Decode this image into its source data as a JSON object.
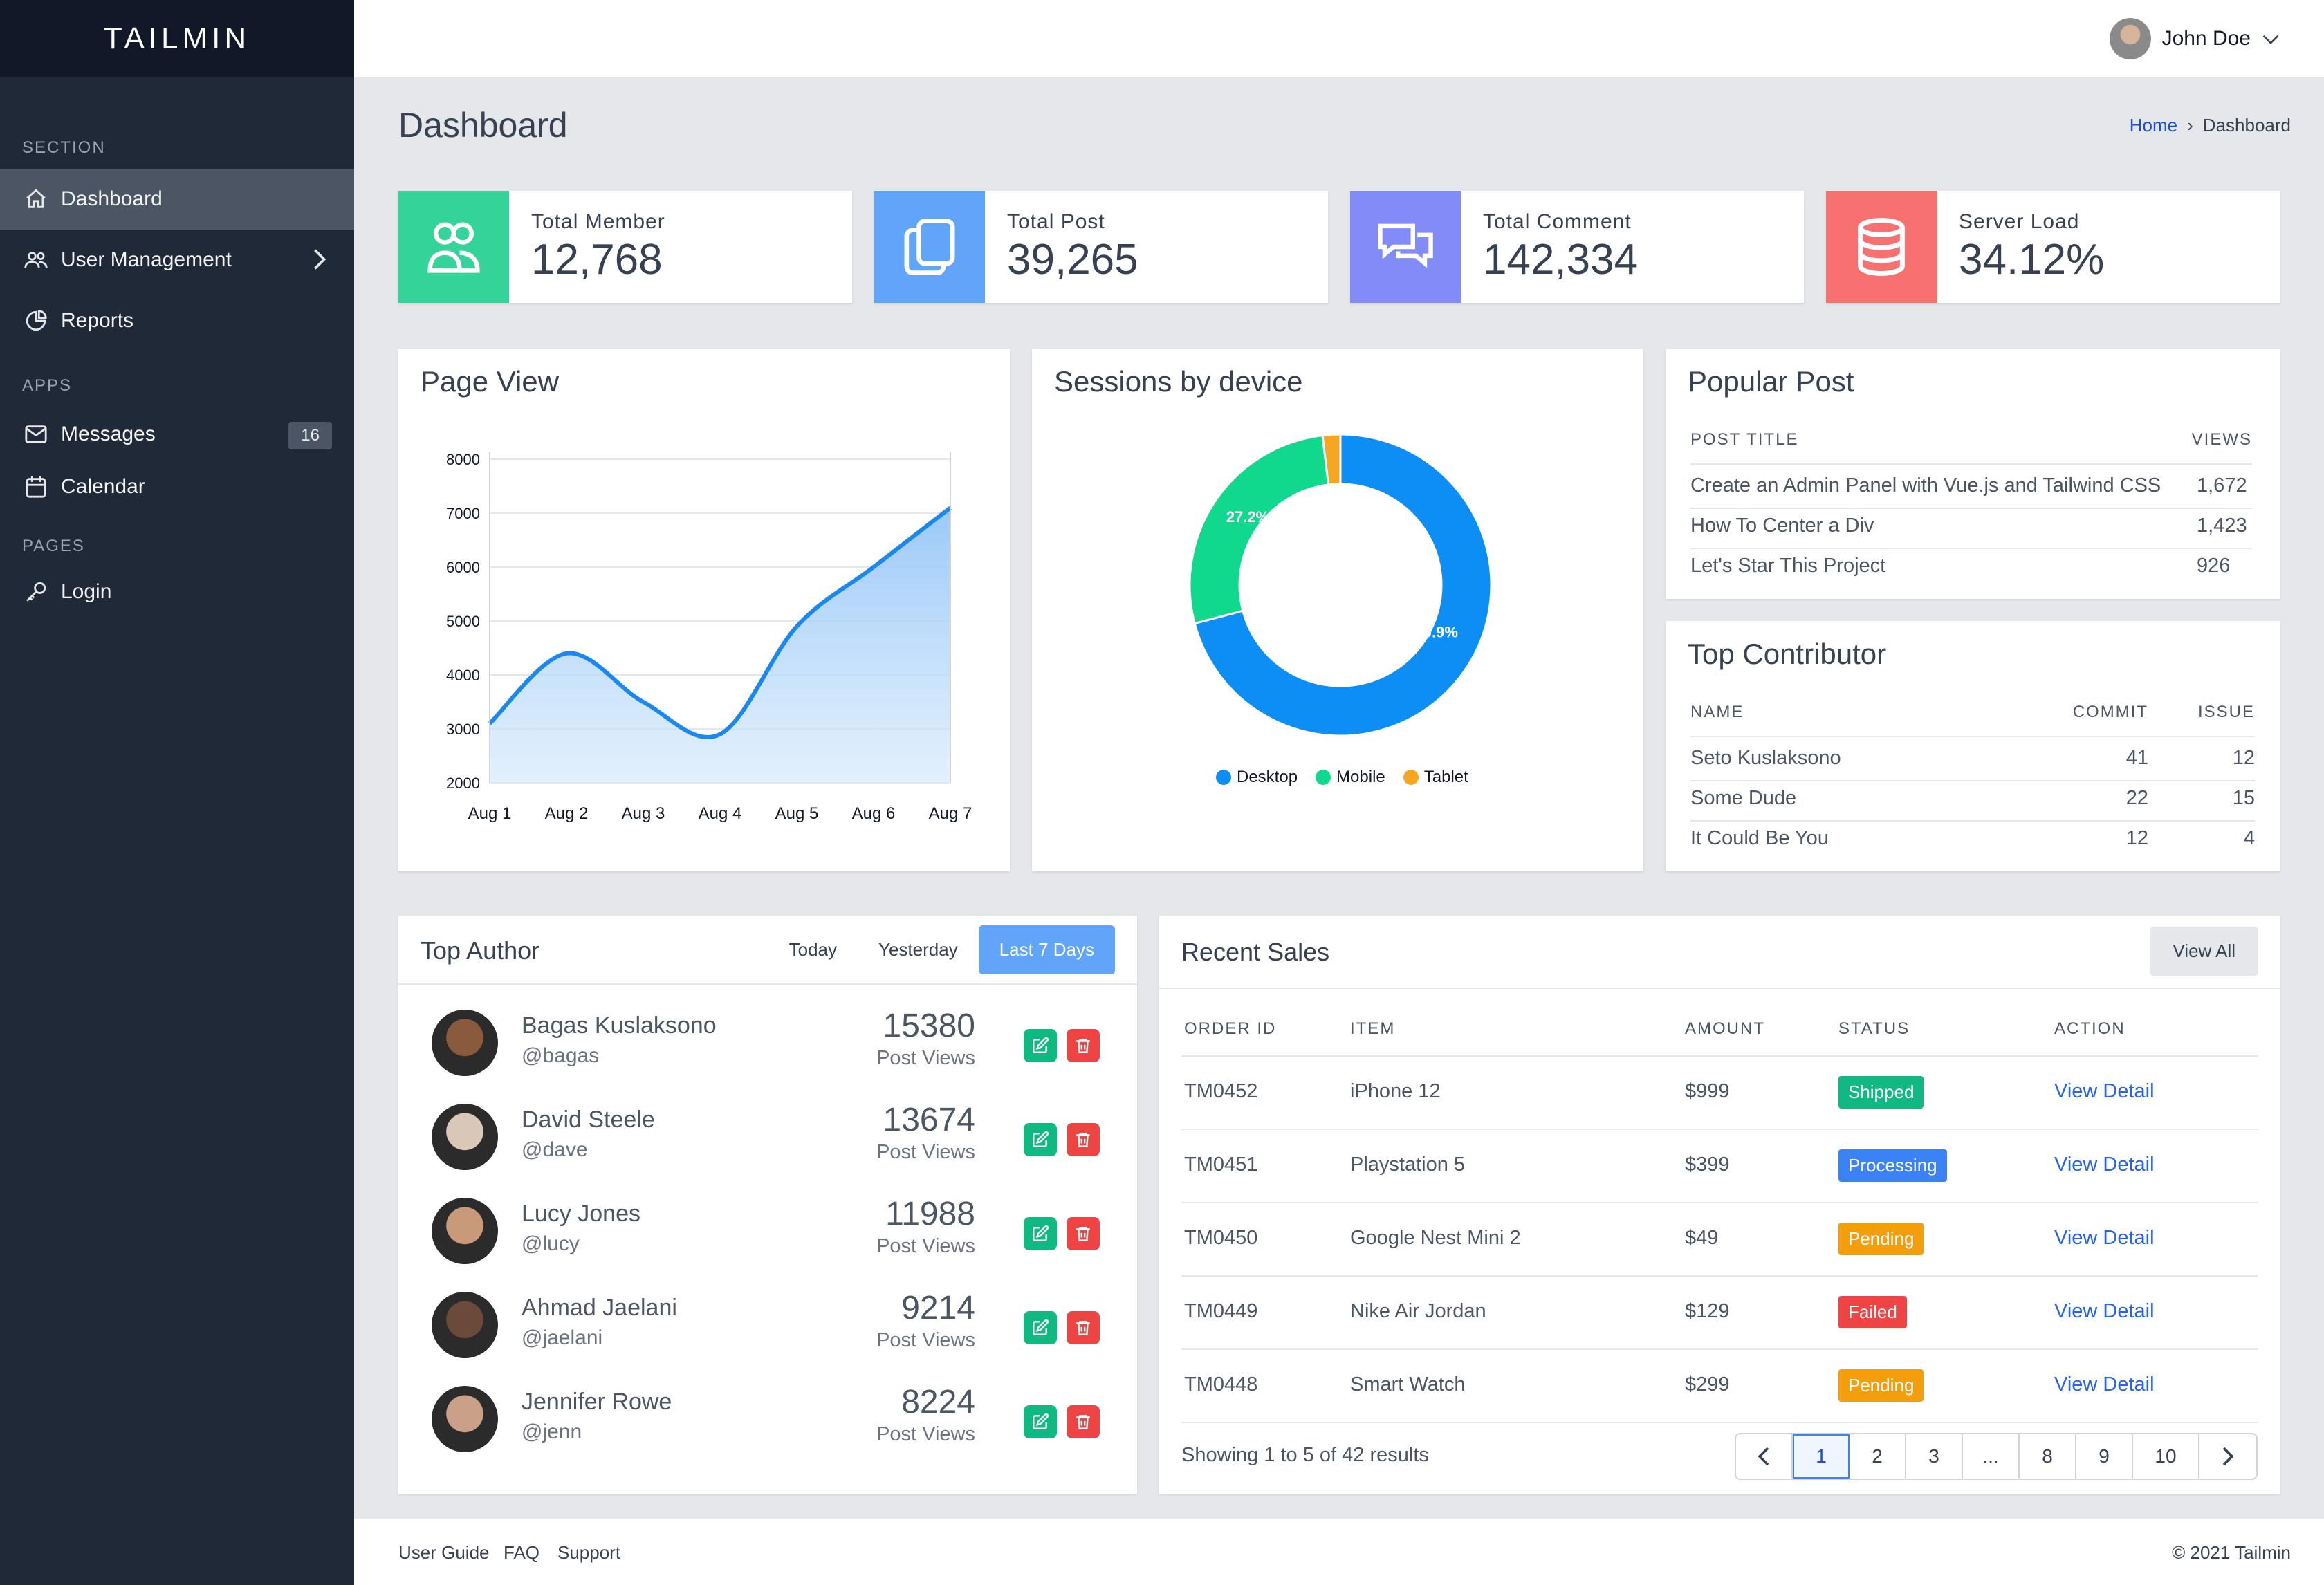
{
  "brand": "TAILMIN",
  "sidebar": {
    "section_label": "SECTION",
    "apps_label": "APPS",
    "pages_label": "PAGES",
    "items": [
      {
        "label": "Dashboard",
        "icon": "home-icon"
      },
      {
        "label": "User Management",
        "icon": "users-icon"
      },
      {
        "label": "Reports",
        "icon": "pie-chart-icon"
      },
      {
        "label": "Messages",
        "icon": "mail-icon",
        "badge": "16"
      },
      {
        "label": "Calendar",
        "icon": "calendar-icon"
      },
      {
        "label": "Login",
        "icon": "key-icon"
      }
    ]
  },
  "header": {
    "user_name": "John Doe"
  },
  "page": {
    "title": "Dashboard",
    "breadcrumb": {
      "home": "Home",
      "sep": "›",
      "current": "Dashboard"
    }
  },
  "stats": [
    {
      "label": "Total Member",
      "value": "12,768",
      "color": "#34d399",
      "icon": "users-icon"
    },
    {
      "label": "Total Post",
      "value": "39,265",
      "color": "#60a5fa",
      "icon": "copy-icon"
    },
    {
      "label": "Total Comment",
      "value": "142,334",
      "color": "#818cf8",
      "icon": "chat-icon"
    },
    {
      "label": "Server Load",
      "value": "34.12%",
      "color": "#f87171",
      "icon": "database-icon"
    }
  ],
  "page_view": {
    "title": "Page View"
  },
  "sessions": {
    "title": "Sessions by device"
  },
  "chart_data": [
    {
      "type": "area",
      "title": "Page View",
      "categories": [
        "Aug 1",
        "Aug 2",
        "Aug 3",
        "Aug 4",
        "Aug 5",
        "Aug 6",
        "Aug 7"
      ],
      "values": [
        3100,
        4400,
        3500,
        2900,
        4900,
        6000,
        7100
      ],
      "ylim": [
        2000,
        8000
      ],
      "yticks": [
        "8000",
        "7000",
        "6000",
        "5000",
        "4000",
        "3000",
        "2000"
      ],
      "color": "#1a88f0",
      "grid": true
    },
    {
      "type": "pie",
      "title": "Sessions by device",
      "donut": true,
      "slices": [
        {
          "name": "Desktop",
          "value": 70.9,
          "label": "70.9%",
          "color": "#0d8ef5"
        },
        {
          "name": "Mobile",
          "value": 27.2,
          "label": "27.2%",
          "color": "#10d98d"
        },
        {
          "name": "Tablet",
          "value": 1.9,
          "label": "",
          "color": "#f5a623"
        }
      ],
      "legend": "bottom"
    }
  ],
  "popular_post": {
    "title": "Popular Post",
    "col_title": "POST TITLE",
    "col_views": "VIEWS",
    "rows": [
      {
        "title": "Create an Admin Panel with Vue.js and Tailwind CSS",
        "views": "1,672"
      },
      {
        "title": "How To Center a Div",
        "views": "1,423"
      },
      {
        "title": "Let's Star This Project",
        "views": "926"
      }
    ]
  },
  "top_contributor": {
    "title": "Top Contributor",
    "col_name": "NAME",
    "col_commit": "COMMIT",
    "col_issue": "ISSUE",
    "rows": [
      {
        "name": "Seto Kuslaksono",
        "commit": "41",
        "issue": "12"
      },
      {
        "name": "Some Dude",
        "commit": "22",
        "issue": "15"
      },
      {
        "name": "It Could Be You",
        "commit": "12",
        "issue": "4"
      }
    ]
  },
  "top_author": {
    "title": "Top Author",
    "tabs": [
      "Today",
      "Yesterday",
      "Last 7 Days"
    ],
    "views_label": "Post Views",
    "authors": [
      {
        "name": "Bagas Kuslaksono",
        "handle": "@bagas",
        "views": "15380",
        "skin": "#8a5a3c"
      },
      {
        "name": "David Steele",
        "handle": "@dave",
        "views": "13674",
        "skin": "#d9c7b8"
      },
      {
        "name": "Lucy Jones",
        "handle": "@lucy",
        "views": "11988",
        "skin": "#c89a7a"
      },
      {
        "name": "Ahmad Jaelani",
        "handle": "@jaelani",
        "views": "9214",
        "skin": "#6b4a3a"
      },
      {
        "name": "Jennifer Rowe",
        "handle": "@jenn",
        "views": "8224",
        "skin": "#c9a088"
      }
    ]
  },
  "recent_sales": {
    "title": "Recent Sales",
    "view_all": "View All",
    "cols": [
      "ORDER ID",
      "ITEM",
      "AMOUNT",
      "STATUS",
      "ACTION"
    ],
    "rows": [
      {
        "id": "TM0452",
        "item": "iPhone 12",
        "amount": "$999",
        "status": "Shipped",
        "color": "#10b981",
        "action": "View Detail"
      },
      {
        "id": "TM0451",
        "item": "Playstation 5",
        "amount": "$399",
        "status": "Processing",
        "color": "#3b82f6",
        "action": "View Detail"
      },
      {
        "id": "TM0450",
        "item": "Google Nest Mini 2",
        "amount": "$49",
        "status": "Pending",
        "color": "#f59e0b",
        "action": "View Detail"
      },
      {
        "id": "TM0449",
        "item": "Nike Air Jordan",
        "amount": "$129",
        "status": "Failed",
        "color": "#ef4444",
        "action": "View Detail"
      },
      {
        "id": "TM0448",
        "item": "Smart Watch",
        "amount": "$299",
        "status": "Pending",
        "color": "#f59e0b",
        "action": "View Detail"
      }
    ],
    "showing": "Showing 1 to 5 of 42 results",
    "pages": [
      "1",
      "2",
      "3",
      "...",
      "8",
      "9",
      "10"
    ],
    "current_page": "1"
  },
  "footer": {
    "links": [
      "User Guide",
      "FAQ",
      "Support"
    ],
    "copyright": "© 2021 Tailmin"
  }
}
